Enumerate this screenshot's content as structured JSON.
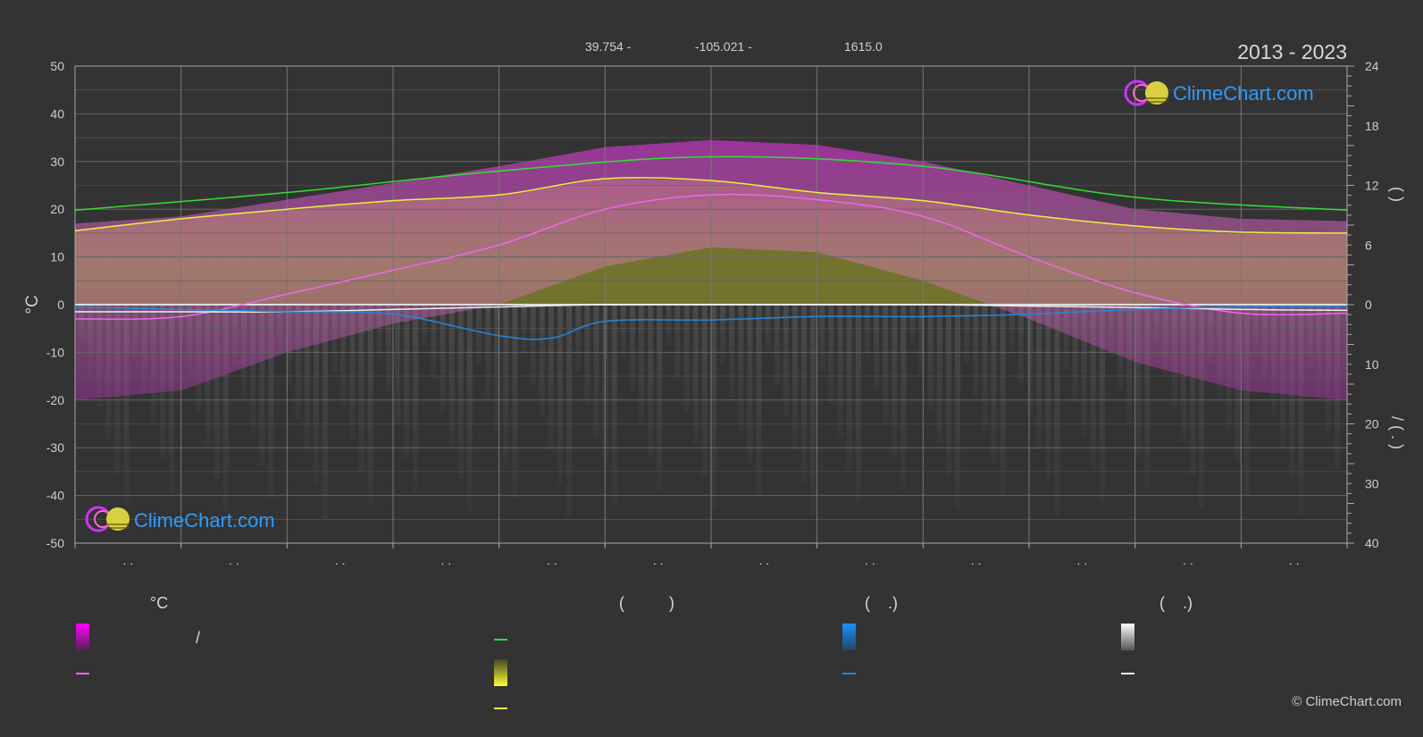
{
  "header": {
    "latitude": "39.754 -",
    "longitude": "-105.021 -",
    "elevation": "1615.0",
    "period": "2013 - 2023"
  },
  "logo": {
    "text": "ClimeChart.com"
  },
  "copyright": "© ClimeChart.com",
  "legend": {
    "col1": {
      "heading": "°C",
      "slash": "/"
    },
    "col2": {
      "heading": "(          )"
    },
    "col3": {
      "heading": "(    .)"
    },
    "col4": {
      "heading": "(    .)"
    }
  },
  "colors": {
    "background": "#333333",
    "grid": "#666666",
    "temp_band": "#cc33cc",
    "temp_line": "#ee66ee",
    "daylight_line": "#33dd33",
    "sunshine_band": "#bbbb33",
    "sunshine_line": "#eeee44",
    "rain_line": "#2288dd",
    "snow_line": "#eeeeee",
    "logo_text": "#2f9bff"
  },
  "chart_data": {
    "type": "line",
    "x_labels": [
      ". .",
      ". .",
      ". .",
      ". .",
      ". .",
      ". .",
      ". .",
      ". .",
      ". .",
      ". .",
      ". .",
      ". ."
    ],
    "y_left": {
      "label": "°C",
      "range": [
        -50,
        50
      ],
      "ticks": [
        50,
        40,
        30,
        20,
        10,
        0,
        -10,
        -20,
        -30,
        -40,
        -50
      ]
    },
    "y_right_top": {
      "range": [
        0,
        24
      ],
      "ticks": [
        24,
        18,
        12,
        6,
        0
      ]
    },
    "y_right_bottom": {
      "range": [
        0,
        40
      ],
      "ticks": [
        10,
        20,
        30,
        40
      ]
    },
    "right_axis_labels": {
      "top": "(     )",
      "bottom": "/        (  .  )"
    },
    "grid": true,
    "series": [
      {
        "key": "daylight",
        "x": [
          0,
          2,
          4,
          6,
          8,
          10,
          12
        ],
        "y": [
          19.8,
          23.5,
          28.0,
          31.0,
          29.0,
          22.5,
          19.8
        ]
      },
      {
        "key": "sunshine",
        "x": [
          0,
          1,
          2,
          3,
          4,
          5,
          6,
          7,
          8,
          9,
          10,
          11,
          12
        ],
        "y": [
          15.5,
          18.0,
          20.0,
          21.8,
          23.0,
          26.4,
          26.0,
          23.5,
          21.8,
          18.8,
          16.5,
          15.2,
          15.0
        ]
      },
      {
        "key": "temp_mean",
        "x": [
          0,
          1,
          2,
          3,
          4,
          5,
          6,
          7,
          8,
          9,
          10,
          11,
          12
        ],
        "y": [
          -3.0,
          -2.5,
          2.2,
          7.2,
          12.5,
          20.0,
          23.0,
          22.0,
          18.5,
          10.0,
          2.5,
          -1.8,
          -1.8
        ]
      },
      {
        "key": "snow_line",
        "x": [
          0,
          1,
          2,
          3,
          4,
          5,
          6,
          7,
          8,
          9,
          10,
          11,
          12
        ],
        "y": [
          -1.5,
          -1.5,
          -1.5,
          -1.0,
          -0.5,
          0,
          0,
          0,
          0,
          -0.3,
          -0.6,
          -1.0,
          -1.2
        ]
      },
      {
        "key": "rain_line",
        "x": [
          0,
          1,
          2,
          3,
          4,
          4.5,
          5,
          6,
          7,
          8,
          9,
          10,
          11,
          12
        ],
        "y": [
          -0.5,
          -1.0,
          -1.5,
          -2.0,
          -6.5,
          -7.0,
          -3.5,
          -3.2,
          -2.5,
          -2.5,
          -2.0,
          -1.0,
          -0.5,
          -0.3
        ]
      }
    ],
    "temp_band": {
      "x": [
        0,
        1,
        2,
        3,
        4,
        5,
        6,
        7,
        8,
        9,
        10,
        11,
        12
      ],
      "high": [
        17.0,
        18.5,
        22.0,
        25.5,
        29.0,
        33.0,
        34.5,
        33.5,
        30.0,
        25.0,
        20.0,
        18.0,
        17.5
      ],
      "low": [
        -20.0,
        -18.0,
        -10.0,
        -4.0,
        0.0,
        8.0,
        12.0,
        11.0,
        5.0,
        -3.0,
        -12.0,
        -18.0,
        -20.0
      ]
    },
    "sunshine_band": {
      "x": [
        0,
        12
      ],
      "bottom": [
        0,
        0
      ]
    }
  }
}
